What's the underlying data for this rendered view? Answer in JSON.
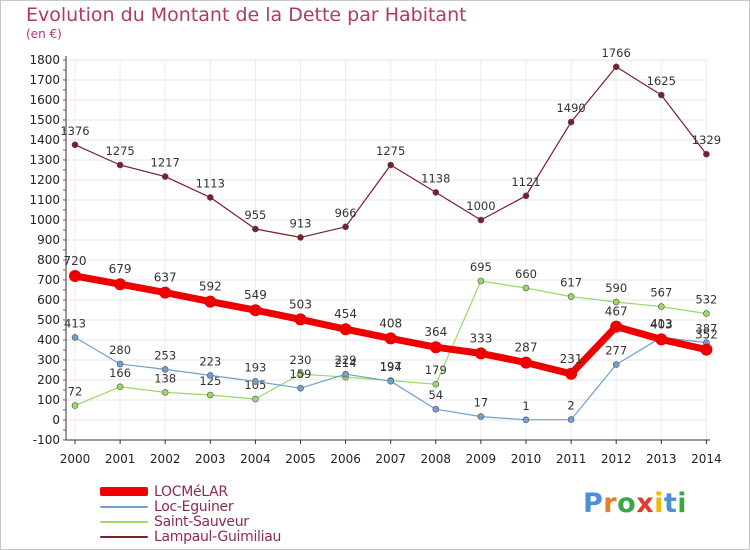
{
  "header": {
    "title": "Evolution du Montant de la Dette par Habitant",
    "subtitle": "(en €)"
  },
  "logo": {
    "text": "Proxiti",
    "letter_colors": [
      "#4a90d9",
      "#e87d2a",
      "#3aa64a",
      "#e23b2e",
      "#f2b705",
      "#4a90d9",
      "#3aa64a"
    ]
  },
  "chart_data": {
    "type": "line",
    "title": "Evolution du Montant de la Dette par Habitant",
    "subtitle": "(en €)",
    "x": [
      "2000",
      "2001",
      "2002",
      "2003",
      "2004",
      "2005",
      "2006",
      "2007",
      "2008",
      "2009",
      "2010",
      "2011",
      "2012",
      "2013",
      "2014"
    ],
    "ylim": [
      -100,
      1800
    ],
    "yticks": [
      -100,
      0,
      100,
      200,
      300,
      400,
      500,
      600,
      700,
      800,
      900,
      1000,
      1100,
      1200,
      1300,
      1400,
      1500,
      1600,
      1700,
      1800
    ],
    "grid": true,
    "legend_position": "bottom-left",
    "series": [
      {
        "name": "Lampaul-Guimiliau",
        "color": "#7a1f2b",
        "values": [
          1376,
          1275,
          1217,
          1113,
          955,
          913,
          966,
          1275,
          1138,
          1000,
          1121,
          1490,
          1766,
          1625,
          1329
        ]
      },
      {
        "name": "Saint-Sauveur",
        "color": "#9ad86b",
        "values": [
          72,
          166,
          138,
          125,
          105,
          230,
          214,
          197,
          179,
          695,
          660,
          617,
          590,
          567,
          532
        ]
      },
      {
        "name": "Loc-Eguiner",
        "color": "#6fa0cf",
        "values": [
          413,
          280,
          253,
          223,
          193,
          159,
          229,
          194,
          54,
          17,
          1,
          2,
          277,
          413,
          387
        ]
      },
      {
        "name": "LOCMéLAR",
        "color": "#ee0000",
        "values": [
          720,
          679,
          637,
          592,
          549,
          503,
          454,
          408,
          364,
          333,
          287,
          231,
          467,
          403,
          352
        ]
      }
    ]
  }
}
